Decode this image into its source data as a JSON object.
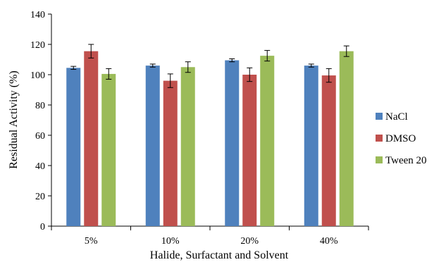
{
  "chart_data": {
    "type": "bar",
    "title": "",
    "xlabel": "Halide, Surfactant and Solvent",
    "ylabel": "Residual Activity (%)",
    "categories": [
      "5%",
      "10%",
      "20%",
      "40%"
    ],
    "ylim": [
      0,
      140
    ],
    "yticks": [
      0,
      20,
      40,
      60,
      80,
      100,
      120,
      140
    ],
    "grid": false,
    "legend_position": "right",
    "series": [
      {
        "name": "NaCl",
        "color": "#4f81bd",
        "values": [
          104.5,
          106,
          109.5,
          106
        ],
        "errors": [
          1,
          1,
          1,
          1
        ]
      },
      {
        "name": "DMSO",
        "color": "#c0504d",
        "values": [
          115.5,
          96,
          100,
          99.5
        ],
        "errors": [
          4.5,
          4.5,
          4.5,
          4.5
        ]
      },
      {
        "name": "Tween 20",
        "color": "#9bbb59",
        "values": [
          100.5,
          105,
          112.5,
          115.5
        ],
        "errors": [
          3.5,
          3.5,
          3.5,
          3.5
        ]
      }
    ]
  }
}
